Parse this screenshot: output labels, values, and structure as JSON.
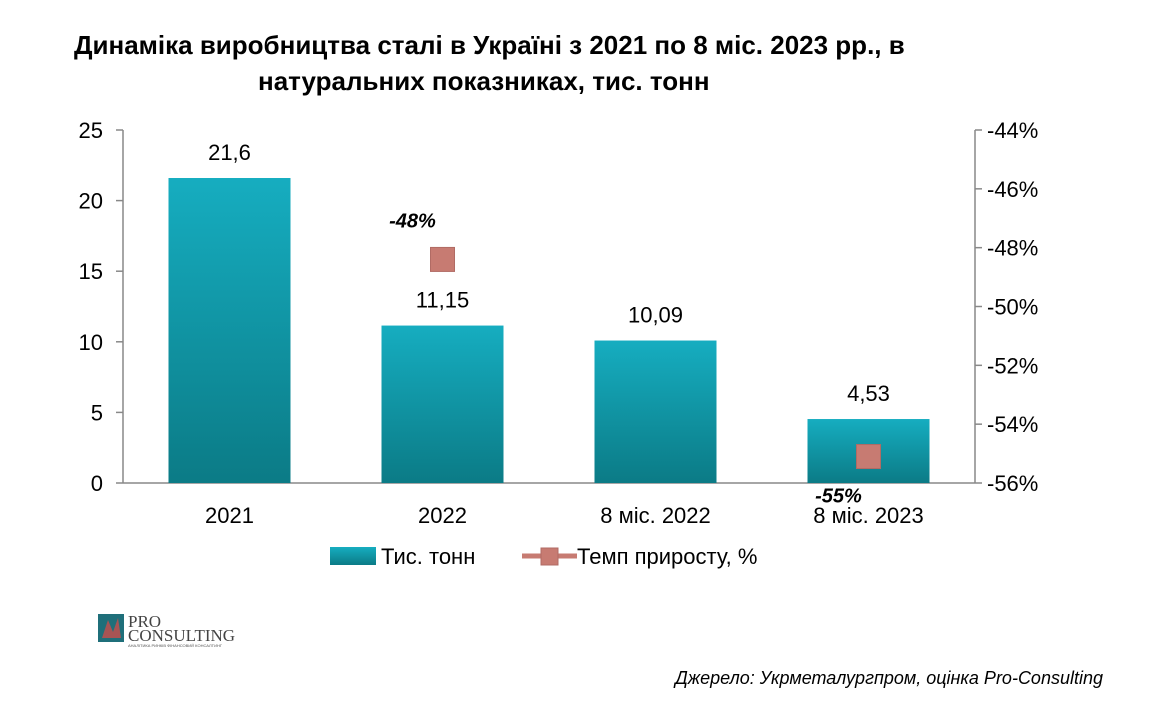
{
  "chart_data": {
    "type": "bar",
    "title_lines": [
      "Динаміка виробництва сталі в Україні з 2021 по 8 міс. 2023 рр., в",
      "натуральних показниках, тис. тонн"
    ],
    "categories": [
      "2021",
      "2022",
      "8 міс. 2022",
      "8 міс. 2023"
    ],
    "series": [
      {
        "name": "Тис. тонн",
        "type": "bar",
        "axis": "left",
        "values": [
          21.6,
          11.15,
          10.09,
          4.53
        ],
        "labels": [
          "21,6",
          "11,15",
          "10,09",
          "4,53"
        ],
        "color": "#1aa7b8"
      },
      {
        "name": "Темп приросту, %",
        "type": "marker",
        "axis": "right",
        "values": [
          null,
          -48.4,
          null,
          -55.1
        ],
        "labels": [
          "",
          "-48%",
          "",
          "-55%"
        ],
        "color": "#c77b72"
      }
    ],
    "y_left": {
      "min": 0,
      "max": 25,
      "ticks": [
        "0",
        "5",
        "10",
        "15",
        "20",
        "25"
      ]
    },
    "y_right": {
      "min": -56,
      "max": -44,
      "ticks": [
        "-56%",
        "-54%",
        "-52%",
        "-50%",
        "-48%",
        "-46%",
        "-44%"
      ]
    },
    "grid": false,
    "legend_position": "bottom"
  },
  "source": "Джерело: Укрметалургпром, оцінка Pro-Consulting",
  "logo": {
    "line1": "PRO",
    "line2": "CONSULTING",
    "tagline": "АНАЛІТИКА РИНКІВ ФІНАНСОВИЙ КОНСАЛТИНГ"
  }
}
